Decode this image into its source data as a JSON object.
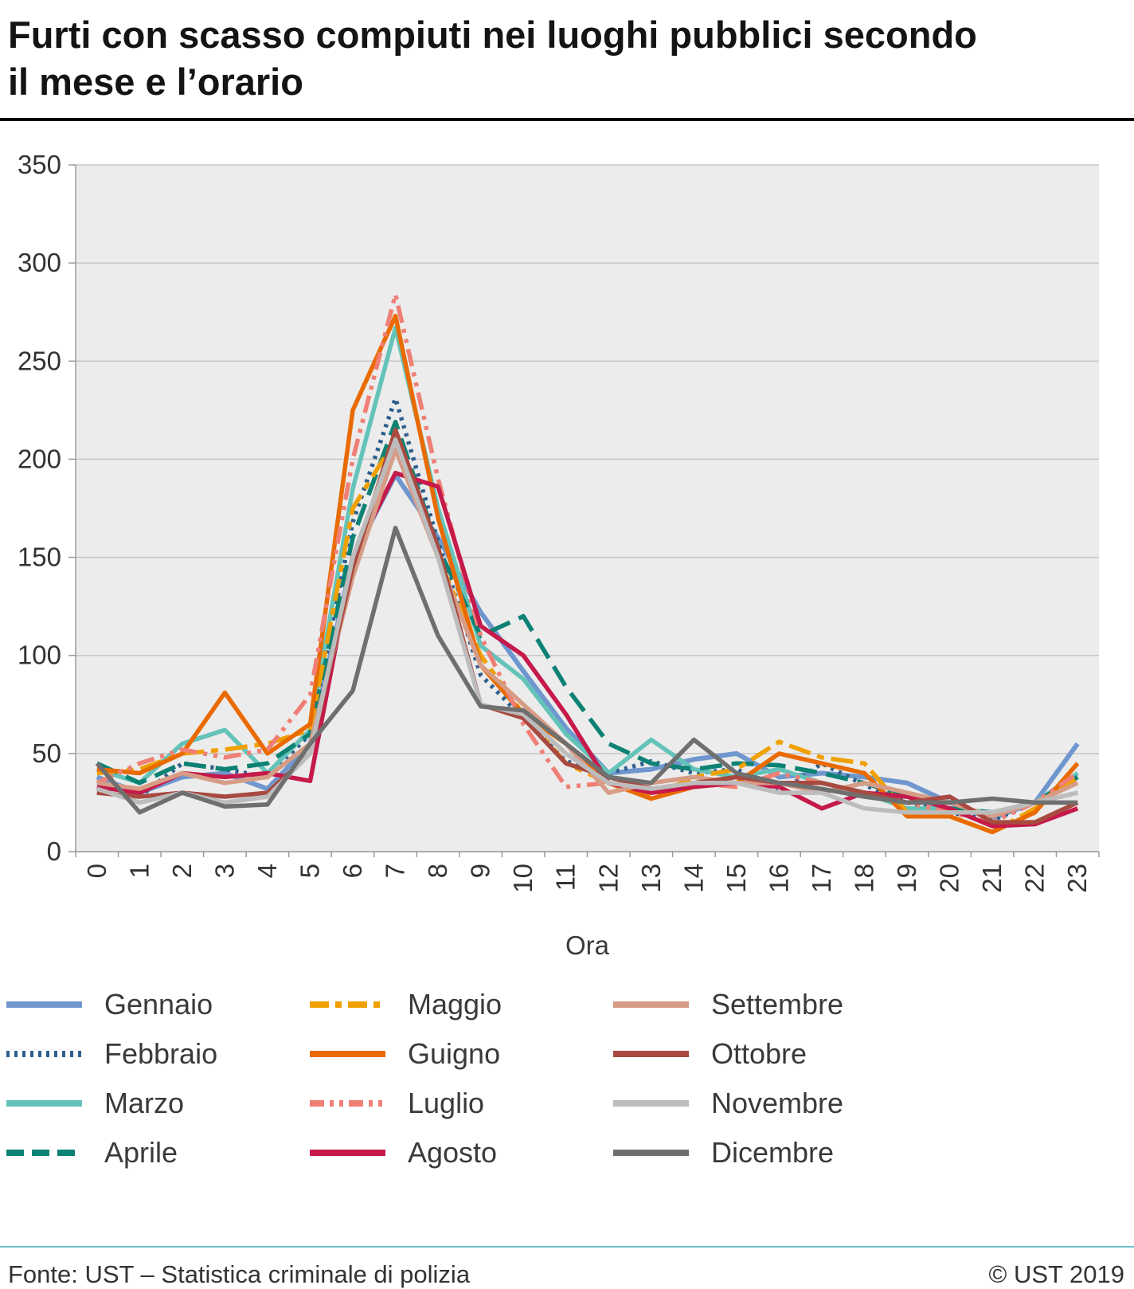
{
  "title": "Furti con scasso compiuti nei luoghi pubblici secondo il mese e l’orario",
  "footer": {
    "source": "Fonte: UST – Statistica criminale di polizia",
    "copyright": "© UST 2019"
  },
  "colors": {
    "plot_bg": "#ececec",
    "grid": "#c6c6c6",
    "axis": "#9b9b9b",
    "title_rule": "#000000",
    "footer_rule": "#70c0cf"
  },
  "chart_data": {
    "type": "line",
    "title": "Furti con scasso compiuti nei luoghi pubblici secondo il mese e l’orario",
    "xlabel": "Ora",
    "ylabel": "",
    "ylim": [
      0,
      350
    ],
    "ytick_step": 50,
    "grid": true,
    "legend_position": "bottom",
    "x": [
      "0",
      "1",
      "2",
      "3",
      "4",
      "5",
      "6",
      "7",
      "8",
      "9",
      "10",
      "11",
      "12",
      "13",
      "14",
      "15",
      "16",
      "17",
      "18",
      "19",
      "20",
      "21",
      "22",
      "23"
    ],
    "series": [
      {
        "name": "Gennaio",
        "color": "#6f97ce",
        "dash": "solid",
        "width": 6,
        "values": [
          38,
          30,
          38,
          40,
          32,
          55,
          150,
          192,
          160,
          122,
          92,
          63,
          40,
          42,
          47,
          50,
          38,
          40,
          38,
          35,
          25,
          17,
          25,
          55
        ]
      },
      {
        "name": "Febbraio",
        "color": "#2f5f8f",
        "dash": "dotted",
        "width": 5.5,
        "values": [
          30,
          28,
          45,
          42,
          38,
          60,
          168,
          231,
          158,
          90,
          68,
          46,
          40,
          46,
          40,
          42,
          30,
          45,
          34,
          25,
          20,
          16,
          25,
          30
        ]
      },
      {
        "name": "Marzo",
        "color": "#64c3b9",
        "dash": "solid",
        "width": 5.5,
        "values": [
          42,
          35,
          55,
          62,
          40,
          62,
          185,
          267,
          175,
          105,
          88,
          60,
          40,
          57,
          42,
          38,
          42,
          35,
          30,
          22,
          22,
          20,
          25,
          40
        ]
      },
      {
        "name": "Aprile",
        "color": "#0d8274",
        "dash": "dash",
        "width": 5.5,
        "values": [
          45,
          35,
          45,
          42,
          45,
          60,
          160,
          219,
          155,
          110,
          120,
          84,
          55,
          45,
          42,
          45,
          44,
          40,
          35,
          28,
          22,
          20,
          25,
          38
        ]
      },
      {
        "name": "Maggio",
        "color": "#f0a000",
        "dash": "dashdot",
        "width": 5.5,
        "values": [
          40,
          42,
          50,
          52,
          55,
          62,
          175,
          210,
          150,
          100,
          70,
          45,
          35,
          28,
          38,
          42,
          56,
          48,
          45,
          20,
          18,
          10,
          22,
          38
        ]
      },
      {
        "name": "Guigno",
        "color": "#e96b00",
        "dash": "solid",
        "width": 5.5,
        "values": [
          42,
          40,
          50,
          81,
          50,
          65,
          225,
          273,
          170,
          95,
          70,
          55,
          35,
          27,
          33,
          35,
          50,
          45,
          40,
          18,
          18,
          10,
          20,
          45
        ]
      },
      {
        "name": "Luglio",
        "color": "#f07f75",
        "dash": "dashdotdot",
        "width": 5.5,
        "values": [
          35,
          45,
          52,
          48,
          52,
          80,
          200,
          284,
          190,
          110,
          65,
          33,
          35,
          32,
          35,
          33,
          40,
          35,
          30,
          25,
          20,
          15,
          25,
          40
        ]
      },
      {
        "name": "Agosto",
        "color": "#c51a4a",
        "dash": "solid",
        "width": 5.5,
        "values": [
          33,
          30,
          40,
          38,
          40,
          36,
          150,
          193,
          186,
          115,
          100,
          70,
          35,
          30,
          33,
          35,
          33,
          22,
          30,
          28,
          22,
          13,
          14,
          22
        ]
      },
      {
        "name": "Settembre",
        "color": "#d79c86",
        "dash": "solid",
        "width": 5.5,
        "values": [
          35,
          32,
          40,
          35,
          38,
          55,
          140,
          205,
          150,
          95,
          75,
          55,
          30,
          35,
          38,
          35,
          35,
          30,
          35,
          30,
          25,
          18,
          25,
          35
        ]
      },
      {
        "name": "Ottobre",
        "color": "#a84a40",
        "dash": "solid",
        "width": 5.5,
        "values": [
          30,
          28,
          30,
          28,
          30,
          50,
          145,
          215,
          155,
          75,
          68,
          45,
          38,
          32,
          35,
          38,
          35,
          35,
          30,
          25,
          28,
          15,
          15,
          25
        ]
      },
      {
        "name": "Novembre",
        "color": "#bcbcbc",
        "dash": "solid",
        "width": 5.5,
        "values": [
          32,
          25,
          30,
          25,
          28,
          50,
          150,
          210,
          150,
          75,
          70,
          50,
          35,
          32,
          35,
          35,
          30,
          30,
          22,
          20,
          20,
          20,
          25,
          30
        ]
      },
      {
        "name": "Dicembre",
        "color": "#6f6f6f",
        "dash": "solid",
        "width": 5.5,
        "values": [
          45,
          20,
          30,
          23,
          24,
          55,
          82,
          165,
          110,
          74,
          72,
          55,
          38,
          35,
          57,
          40,
          35,
          32,
          28,
          25,
          25,
          27,
          25,
          25
        ]
      }
    ]
  }
}
